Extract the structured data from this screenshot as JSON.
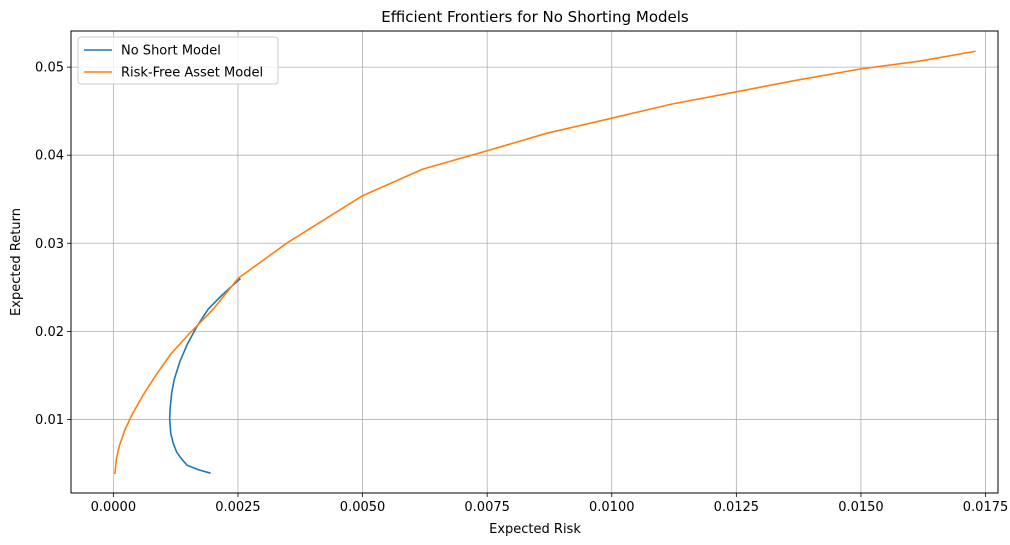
{
  "chart_data": {
    "type": "line",
    "title": "Efficient Frontiers for No Shorting Models",
    "xlabel": "Expected Risk",
    "ylabel": "Expected Return",
    "xlim": [
      -0.00085,
      0.01775
    ],
    "ylim": [
      0.00165,
      0.0541
    ],
    "xticks": [
      0.0,
      0.0025,
      0.005,
      0.0075,
      0.01,
      0.0125,
      0.015,
      0.0175
    ],
    "xtick_labels": [
      "0.0000",
      "0.0025",
      "0.0050",
      "0.0075",
      "0.0100",
      "0.0125",
      "0.0150",
      "0.0175"
    ],
    "yticks": [
      0.01,
      0.02,
      0.03,
      0.04,
      0.05
    ],
    "ytick_labels": [
      "0.01",
      "0.02",
      "0.03",
      "0.04",
      "0.05"
    ],
    "grid": true,
    "legend_position": "top-left",
    "series": [
      {
        "name": "No Short Model",
        "color": "#1f77b4",
        "points": [
          [
            0.00195,
            0.0039
          ],
          [
            0.0017,
            0.0043
          ],
          [
            0.00148,
            0.0048
          ],
          [
            0.00137,
            0.0055
          ],
          [
            0.00127,
            0.0063
          ],
          [
            0.0012,
            0.0073
          ],
          [
            0.00115,
            0.0085
          ],
          [
            0.00113,
            0.01
          ],
          [
            0.00114,
            0.0113
          ],
          [
            0.00117,
            0.013
          ],
          [
            0.00122,
            0.0145
          ],
          [
            0.00133,
            0.0165
          ],
          [
            0.00148,
            0.0185
          ],
          [
            0.00167,
            0.0205
          ],
          [
            0.0019,
            0.0225
          ],
          [
            0.00214,
            0.0239
          ],
          [
            0.00235,
            0.025
          ],
          [
            0.00255,
            0.026
          ]
        ]
      },
      {
        "name": "Risk-Free Asset Model",
        "color": "#ff7f0e",
        "points": [
          [
            3e-05,
            0.0038
          ],
          [
            6e-05,
            0.0055
          ],
          [
            0.00012,
            0.007
          ],
          [
            0.00023,
            0.0088
          ],
          [
            0.00038,
            0.0106
          ],
          [
            0.0006,
            0.0128
          ],
          [
            0.00085,
            0.015
          ],
          [
            0.00115,
            0.0174
          ],
          [
            0.0015,
            0.0196
          ],
          [
            0.002,
            0.0225
          ],
          [
            0.0025,
            0.026
          ],
          [
            0.0035,
            0.0301
          ],
          [
            0.005,
            0.0354
          ],
          [
            0.0062,
            0.0384
          ],
          [
            0.0075,
            0.0405
          ],
          [
            0.0087,
            0.0425
          ],
          [
            0.01,
            0.0442
          ],
          [
            0.0112,
            0.0458
          ],
          [
            0.0125,
            0.0472
          ],
          [
            0.0137,
            0.0485
          ],
          [
            0.015,
            0.0498
          ],
          [
            0.0162,
            0.0507
          ],
          [
            0.0173,
            0.0518
          ]
        ]
      }
    ]
  }
}
